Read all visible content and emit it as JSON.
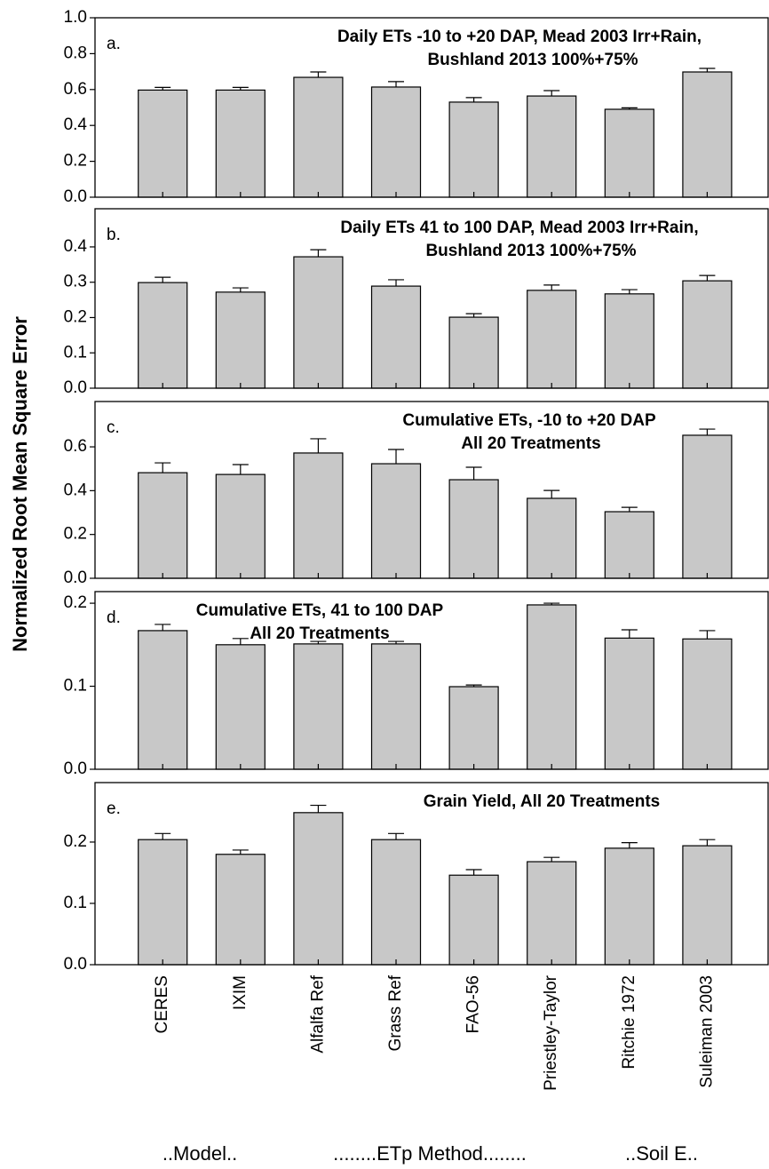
{
  "y_axis_label": "Normalized Root Mean Square Error",
  "categories": [
    "CERES",
    "IXIM",
    "Alfalfa Ref",
    "Grass Ref",
    "FAO-56",
    "Priestley-Taylor",
    "Ritchie 1972",
    "Suleiman 2003"
  ],
  "group_labels": [
    "..Model..",
    "........ETp Method........",
    "..Soil E.."
  ],
  "chart_data": [
    {
      "type": "bar",
      "label": "a.",
      "title": [
        "Daily ETs -10 to +20 DAP, Mead 2003 Irr+Rain,",
        "Bushland 2013 100%+75%"
      ],
      "values": [
        0.597,
        0.597,
        0.668,
        0.614,
        0.53,
        0.564,
        0.49,
        0.698
      ],
      "errors": [
        0.015,
        0.015,
        0.03,
        0.03,
        0.025,
        0.03,
        0.008,
        0.02
      ],
      "color": "#c8c8c8",
      "ylim": [
        0,
        1
      ],
      "yticks": [
        {
          "value": 0,
          "label": "0.0"
        },
        0.2,
        0.4,
        0.6,
        0.8,
        {
          "value": 1,
          "label": "1.0"
        }
      ]
    },
    {
      "type": "bar",
      "label": "b.",
      "title": [
        "Daily ETs 41 to 100 DAP, Mead 2003 Irr+Rain,",
        "Bushland 2013 100%+75%"
      ],
      "values": [
        0.299,
        0.272,
        0.372,
        0.289,
        0.201,
        0.277,
        0.267,
        0.304
      ],
      "errors": [
        0.015,
        0.012,
        0.02,
        0.018,
        0.01,
        0.015,
        0.012,
        0.015
      ],
      "color": "#c8c8c8",
      "ylim": [
        0,
        0.508
      ],
      "yticks": [
        {
          "value": 0,
          "label": "0.0"
        },
        0.1,
        0.2,
        0.3,
        0.4
      ]
    },
    {
      "type": "bar",
      "label": "c.",
      "title": [
        "Cumulative ETs, -10 to +20 DAP",
        "All 20 Treatments"
      ],
      "values": [
        0.482,
        0.474,
        0.572,
        0.523,
        0.45,
        0.365,
        0.304,
        0.653
      ],
      "errors": [
        0.045,
        0.045,
        0.065,
        0.065,
        0.057,
        0.036,
        0.02,
        0.028
      ],
      "color": "#c8c8c8",
      "ylim": [
        0,
        0.807
      ],
      "yticks": [
        {
          "value": 0,
          "label": "0.0"
        },
        0.2,
        0.4,
        0.6
      ]
    },
    {
      "type": "bar",
      "label": "d.",
      "title": [
        "Cumulative ETs, 41 to 100 DAP",
        "All 20 Treatments"
      ],
      "values": [
        0.167,
        0.15,
        0.151,
        0.151,
        0.0995,
        0.198,
        0.158,
        0.157
      ],
      "errors": [
        0.0075,
        0.0075,
        0.003,
        0.003,
        0.002,
        0.002,
        0.01,
        0.01
      ],
      "color": "#c8c8c8",
      "ylim": [
        0,
        0.214
      ],
      "yticks": [
        {
          "value": 0,
          "label": "0.0"
        },
        0.1,
        0.2
      ]
    },
    {
      "type": "bar",
      "label": "e.",
      "title": [
        "Grain Yield, All 20 Treatments"
      ],
      "values": [
        0.204,
        0.18,
        0.248,
        0.204,
        0.146,
        0.168,
        0.19,
        0.194
      ],
      "errors": [
        0.01,
        0.007,
        0.012,
        0.01,
        0.009,
        0.007,
        0.009,
        0.01
      ],
      "color": "#c8c8c8",
      "ylim": [
        0,
        0.297
      ],
      "yticks": [
        {
          "value": 0,
          "label": "0.0"
        },
        0.1,
        0.2
      ]
    }
  ]
}
